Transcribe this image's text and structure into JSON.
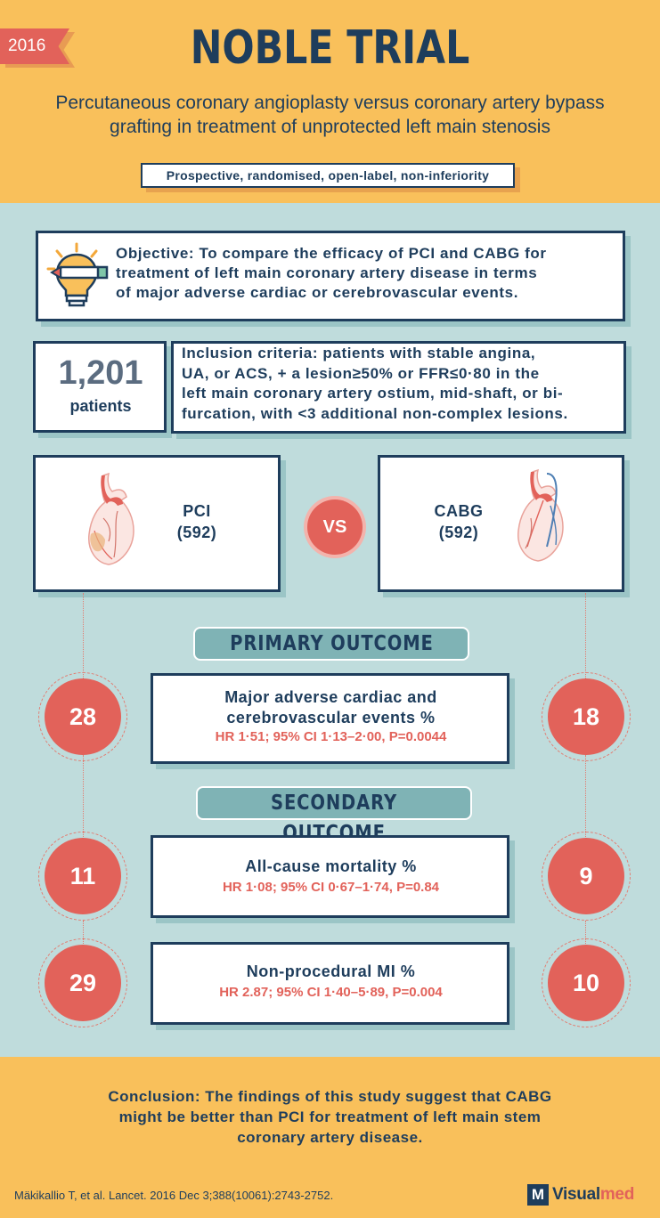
{
  "header": {
    "year": "2016",
    "title": "NOBLE TRIAL",
    "subtitle_line1": "Percutaneous coronary angioplasty versus coronary artery bypass",
    "subtitle_line2": "grafting in treatment of unprotected left main stenosis",
    "design": "Prospective, randomised, open-label, non-inferiority"
  },
  "objective": {
    "icon": "lightbulb-icon",
    "line1": "Objective: To compare the efficacy of PCI and CABG for",
    "line2": "treatment of left main coronary artery disease in terms",
    "line3": "of major adverse cardiac or cerebrovascular events."
  },
  "population": {
    "count": "1,201",
    "label": "patients"
  },
  "inclusion": {
    "line1": "Inclusion criteria:  patients with stable angina,",
    "line2": "UA, or ACS, +  a lesion≥50% or FFR≤0·80 in the",
    "line3": "left main coronary artery ostium, mid-shaft, or bi-",
    "line4": "furcation, with <3 additional non-complex lesions."
  },
  "arms": {
    "pci": {
      "name": "PCI",
      "n": "(592)",
      "icon": "heart-stent-icon"
    },
    "cabg": {
      "name": "CABG",
      "n": "(592)",
      "icon": "heart-bypass-icon"
    },
    "vs": "VS"
  },
  "primary": {
    "heading": "PRIMARY OUTCOME",
    "title_line1": "Major adverse cardiac and",
    "title_line2": "cerebrovascular events %",
    "hr": "HR 1·51; 95% CI 1·13–2·00, P=0.0044",
    "pci_value": "28",
    "cabg_value": "18"
  },
  "secondary": {
    "heading": "SECONDARY OUTCOME",
    "items": [
      {
        "title": "All-cause mortality %",
        "hr": "HR 1·08; 95% CI 0·67–1·74, P=0.84",
        "pci_value": "11",
        "cabg_value": "9"
      },
      {
        "title": "Non-procedural MI %",
        "hr": "HR 2.87; 95% CI 1·40–5·89, P=0.004",
        "pci_value": "29",
        "cabg_value": "10"
      }
    ]
  },
  "conclusion": {
    "line1": "Conclusion: The findings of this study suggest that CABG",
    "line2": "might be better than PCI for treatment of left main stem",
    "line3": "coronary artery disease."
  },
  "footer": {
    "citation": "Mäkikallio T, et al. Lancet. 2016 Dec 3;388(10061):2743-2752.",
    "logo_mark": "M",
    "logo_part1": "Visual",
    "logo_part2": "med"
  },
  "colors": {
    "navy": "#1e3d5c",
    "coral": "#e2625a",
    "yellow": "#f9c05b",
    "teal_bg": "#bfdcdc",
    "teal_pill": "#7fb3b5"
  }
}
